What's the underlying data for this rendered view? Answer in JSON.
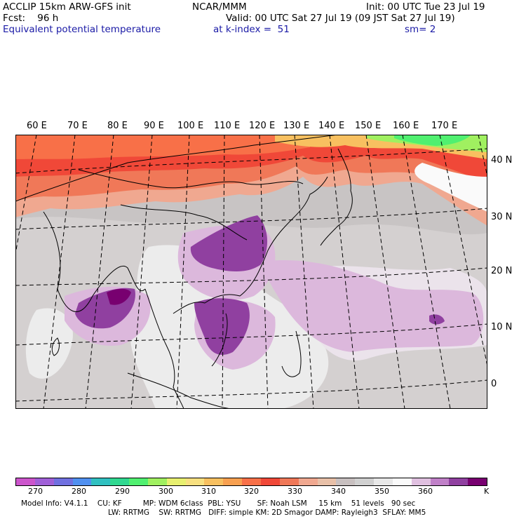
{
  "header": {
    "model": "ACCLIP 15km ARW-GFS init",
    "center": "NCAR/MMM",
    "init": "Init: 00 UTC Tue 23 Jul 19",
    "fcst": "Fcst:    96 h",
    "valid": "Valid: 00 UTC Sat 27 Jul 19 (09 JST Sat 27 Jul 19)",
    "field": "Equivalent potential temperature",
    "level": "at k-index =  51",
    "smooth": "sm= 2"
  },
  "map": {
    "lon_labels": [
      "60 E",
      "70 E",
      "80 E",
      "90 E",
      "100 E",
      "110 E",
      "120 E",
      "130 E",
      "140 E",
      "150 E",
      "160 E",
      "170 E"
    ],
    "lat_labels": [
      "40 N",
      "30 N",
      "20 N",
      "10 N",
      "0"
    ]
  },
  "colorbar": {
    "colors": [
      "#cc55cc",
      "#a060d8",
      "#7070e0",
      "#5090f0",
      "#30c0c0",
      "#30d890",
      "#50f070",
      "#a0f060",
      "#e8f070",
      "#f8e080",
      "#f8c060",
      "#f8a050",
      "#f87048",
      "#f04838",
      "#f07858",
      "#f0a890",
      "#e8c0a8",
      "#c8c0c0",
      "#d0d0d0",
      "#e8e8e8",
      "#fafafa",
      "#e0c0e0",
      "#c080c8",
      "#9040a0",
      "#780070"
    ],
    "labels": [
      "270",
      "280",
      "290",
      "300",
      "310",
      "320",
      "330",
      "340",
      "350",
      "360",
      "K"
    ]
  },
  "footer": {
    "line1": "Model Info: V4.1.1    CU: KF         MP: WDM 6class  PBL: YSU       SF: Noah LSM     15 km    51 levels   90 sec",
    "line2": "LW: RRTMG    SW: RRTMG   DIFF: simple KM: 2D Smagor DAMP: Rayleigh3  SFLAY: MM5"
  }
}
